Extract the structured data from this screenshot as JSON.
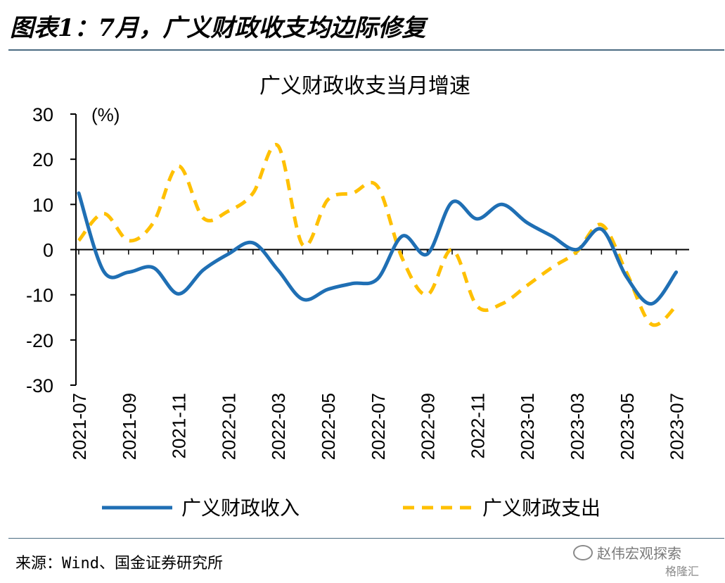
{
  "header": {
    "title": "图表1：7月，广义财政收支均边际修复"
  },
  "footer": {
    "source": "来源：Wind、国金证券研究所"
  },
  "watermark": {
    "text": "赵伟宏观探索",
    "sub": "格隆汇"
  },
  "chart_data": {
    "type": "line",
    "title": "广义财政收支当月增速",
    "unit_label": "(%)",
    "ylim": [
      -30,
      30
    ],
    "yticks": [
      30,
      20,
      10,
      0,
      -10,
      -20,
      -30
    ],
    "x": [
      "2021-07",
      "2021-08",
      "2021-09",
      "2021-10",
      "2021-11",
      "2021-12",
      "2022-01",
      "2022-02",
      "2022-03",
      "2022-04",
      "2022-05",
      "2022-06",
      "2022-07",
      "2022-08",
      "2022-09",
      "2022-10",
      "2022-11",
      "2022-12",
      "2023-01",
      "2023-02",
      "2023-03",
      "2023-04",
      "2023-05",
      "2023-06",
      "2023-07"
    ],
    "xtick_labels": [
      "2021-07",
      "2021-09",
      "2021-11",
      "2022-01",
      "2022-03",
      "2022-05",
      "2022-07",
      "2022-09",
      "2022-11",
      "2023-01",
      "2023-03",
      "2023-05",
      "2023-07"
    ],
    "grid": false,
    "legend_position": "bottom",
    "series": [
      {
        "name": "广义财政收入",
        "color": "#1f6fb4",
        "dash": false,
        "values": [
          12.5,
          -4.8,
          -5.0,
          -4.0,
          -9.8,
          -4.5,
          -1.0,
          1.5,
          -4.5,
          -11.0,
          -8.8,
          -7.5,
          -6.5,
          3.0,
          -1.0,
          10.5,
          6.8,
          10.0,
          6.0,
          3.0,
          0.0,
          4.5,
          -6.0,
          -12.0,
          -5.0
        ]
      },
      {
        "name": "广义财政支出",
        "color": "#ffc000",
        "dash": true,
        "values": [
          2.0,
          8.0,
          2.0,
          6.0,
          18.5,
          7.0,
          8.5,
          12.5,
          23.0,
          1.0,
          11.0,
          12.5,
          14.0,
          -2.0,
          -10.0,
          0.0,
          -12.5,
          -12.0,
          -8.0,
          -4.0,
          -0.5,
          5.5,
          -5.0,
          -16.5,
          -12.5
        ]
      }
    ]
  }
}
